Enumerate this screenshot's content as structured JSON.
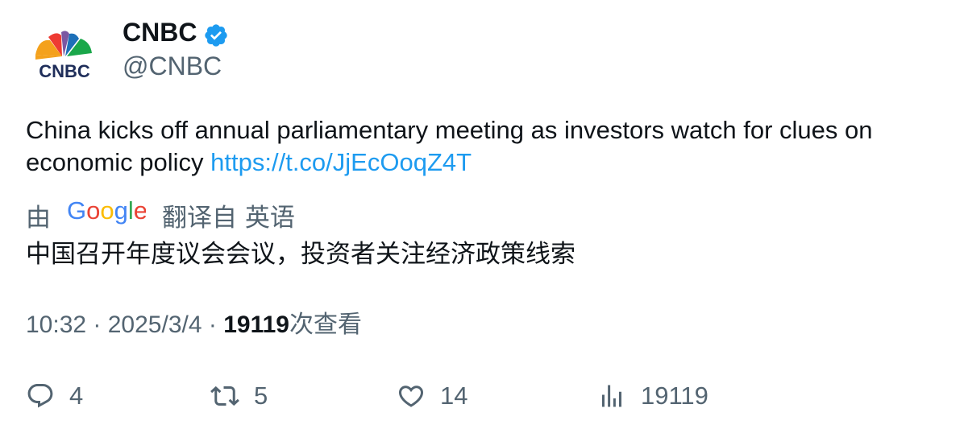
{
  "author": {
    "name": "CNBC",
    "handle": "@CNBC",
    "logo_text": "CNBC",
    "verified": true
  },
  "tweet": {
    "text": "China kicks off annual parliamentary meeting as investors watch for clues on economic policy ",
    "link": "https://t.co/JjEcOoqZ4T"
  },
  "translation": {
    "prefix": "由",
    "provider": "Google",
    "suffix": "翻译自 英语",
    "text": "中国召开年度议会会议，投资者关注经济政策线索"
  },
  "meta": {
    "time": "10:32",
    "separator1": " · ",
    "date": "2025/3/4",
    "separator2": " · ",
    "views": "19119",
    "views_label": "次查看"
  },
  "actions": {
    "replies": "4",
    "retweets": "5",
    "likes": "14",
    "views": "19119"
  },
  "colors": {
    "link": "#1d9bf0",
    "secondary_text": "#536471",
    "primary_text": "#0f1419",
    "verified_badge": "#1d9bf0"
  },
  "icons": [
    "cnbc-peacock-logo",
    "verified-badge-icon",
    "google-logo",
    "reply-icon",
    "retweet-icon",
    "like-icon",
    "views-icon"
  ]
}
